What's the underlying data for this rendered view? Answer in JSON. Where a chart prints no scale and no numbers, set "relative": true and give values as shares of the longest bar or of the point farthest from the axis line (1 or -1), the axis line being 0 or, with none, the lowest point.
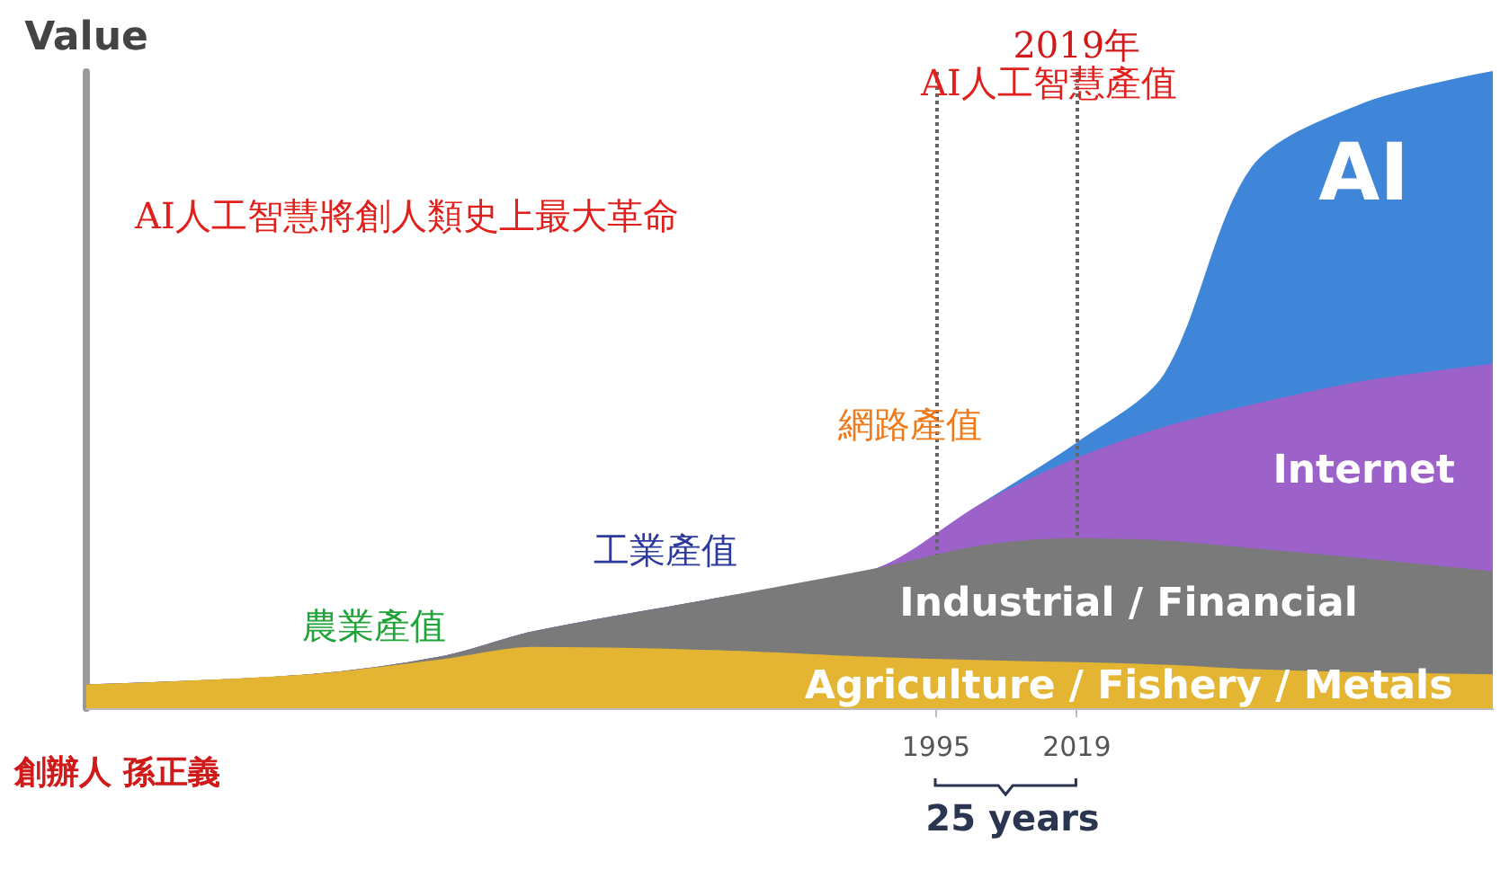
{
  "chart_data": {
    "type": "area",
    "stacked": true,
    "relative": true,
    "ylabel": "Value",
    "xlim": [
      1850,
      2090
    ],
    "xticks": [
      1995,
      2019
    ],
    "tick_labels": "x",
    "grid": false,
    "legend": false,
    "x": [
      1850,
      1888,
      1911,
      1926,
      1957,
      1985,
      2003,
      2019,
      2034,
      2049,
      2068,
      2090
    ],
    "series": [
      {
        "name": "Agriculture / Fishery / Metals",
        "color": "#e3b533",
        "values": [
          0.036,
          0.052,
          0.076,
          0.095,
          0.09,
          0.079,
          0.074,
          0.071,
          0.067,
          0.06,
          0.055,
          0.052
        ]
      },
      {
        "name": "Industrial / Financial",
        "color": "#7a7a7a",
        "values": [
          0,
          0,
          0.005,
          0.024,
          0.081,
          0.14,
          0.181,
          0.195,
          0.195,
          0.19,
          0.179,
          0.162
        ]
      },
      {
        "name": "Internet",
        "color": "#9c62c9",
        "values": [
          0,
          0,
          0,
          0,
          0,
          0,
          0.067,
          0.126,
          0.179,
          0.226,
          0.279,
          0.326
        ]
      },
      {
        "name": "AI",
        "color": "#3f86d8",
        "values": [
          0,
          0,
          0,
          0,
          0,
          0,
          0,
          0.024,
          0.083,
          0.374,
          0.437,
          0.46
        ]
      }
    ],
    "ref_lines": [
      {
        "axis": "x",
        "value": 1995,
        "line_style": "dotted",
        "color": "#666666"
      },
      {
        "axis": "x",
        "value": 2019,
        "label": "2019年",
        "line_style": "dotted",
        "color": "#666666"
      }
    ],
    "annotations": [
      "農業產值",
      "工業產值",
      "網路產值",
      "AI人工智慧產值",
      "AI人工智慧將創人類史上最大革命",
      "25 years",
      "創辦人 孫正義"
    ]
  }
}
